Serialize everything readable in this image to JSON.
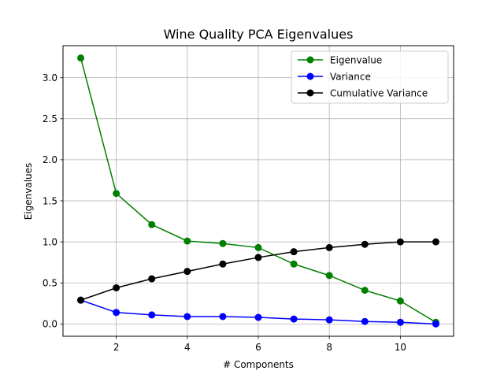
{
  "chart_data": {
    "type": "line",
    "title": "Wine Quality  PCA Eigenvalues",
    "xlabel": "# Components",
    "ylabel": "Eigenvalues",
    "x": [
      1,
      2,
      3,
      4,
      5,
      6,
      7,
      8,
      9,
      10,
      11
    ],
    "xlim": [
      0.5,
      11.5
    ],
    "ylim": [
      -0.15,
      3.39
    ],
    "xticks": [
      2,
      4,
      6,
      8,
      10
    ],
    "yticks": [
      0.0,
      0.5,
      1.0,
      1.5,
      2.0,
      2.5,
      3.0
    ],
    "grid": true,
    "legend_position": "top-right",
    "series": [
      {
        "name": "Eigenvalue",
        "color": "#008000",
        "values": [
          3.24,
          1.59,
          1.21,
          1.01,
          0.98,
          0.93,
          0.73,
          0.59,
          0.41,
          0.28,
          0.02
        ]
      },
      {
        "name": "Variance",
        "color": "#0000ff",
        "values": [
          0.29,
          0.14,
          0.11,
          0.09,
          0.09,
          0.08,
          0.06,
          0.05,
          0.03,
          0.02,
          0.0
        ]
      },
      {
        "name": "Cumulative Variance",
        "color": "#000000",
        "values": [
          0.29,
          0.44,
          0.55,
          0.64,
          0.73,
          0.81,
          0.88,
          0.93,
          0.97,
          1.0,
          1.0
        ]
      }
    ]
  }
}
